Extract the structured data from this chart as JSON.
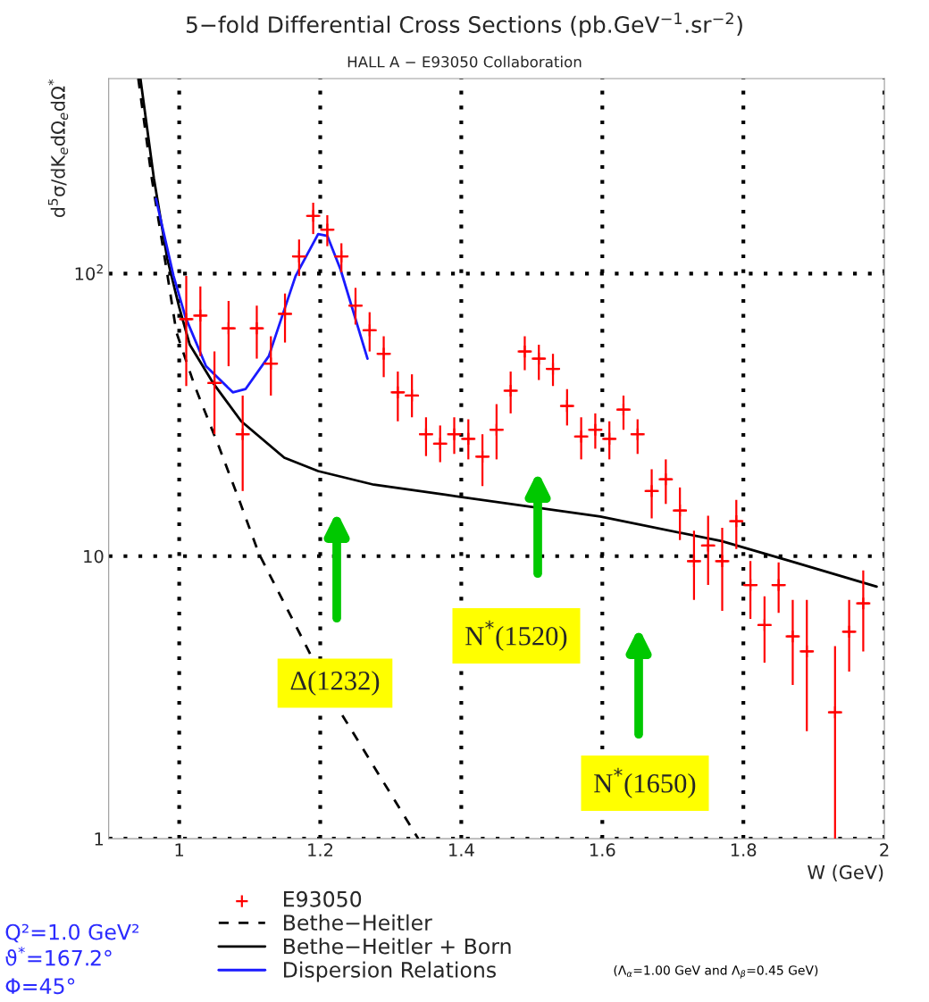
{
  "chart_data": {
    "type": "line",
    "title": "5−fold Differential Cross Sections (pb.GeV$^{−1}$.sr$^{−2}$)",
    "subtitle": "HALL A − E93050 Collaboration",
    "xlabel": "W (GeV)",
    "ylabel": "d$^{5}$σ/dK$_{e}$dΩ$_{e}$dΩ$^{*}$",
    "xlim": [
      0.9,
      2.0
    ],
    "xticks": [
      1,
      1.2,
      1.4,
      1.6,
      1.8,
      2
    ],
    "ylim": [
      1,
      490
    ],
    "yticks": [
      1,
      10,
      {
        "value": 100,
        "label": "10$^{2}$"
      }
    ],
    "log": "y",
    "grid": true,
    "legend": "bottom",
    "series": [
      {
        "name": "E93050",
        "type": "scatter",
        "marker": "cross",
        "color": "#ff0000",
        "x": [
          1.01,
          1.03,
          1.05,
          1.07,
          1.09,
          1.11,
          1.13,
          1.15,
          1.17,
          1.19,
          1.21,
          1.23,
          1.25,
          1.27,
          1.29,
          1.31,
          1.33,
          1.35,
          1.37,
          1.39,
          1.41,
          1.43,
          1.45,
          1.47,
          1.49,
          1.51,
          1.53,
          1.55,
          1.57,
          1.59,
          1.61,
          1.63,
          1.65,
          1.67,
          1.69,
          1.71,
          1.73,
          1.75,
          1.77,
          1.79,
          1.81,
          1.83,
          1.85,
          1.87,
          1.89,
          1.93,
          1.95,
          1.97
        ],
        "values": [
          69,
          71,
          41,
          64,
          27,
          64,
          48,
          72,
          115,
          160,
          143,
          115,
          77,
          63,
          52,
          38,
          37,
          27,
          25,
          27,
          26,
          22.5,
          28,
          38.5,
          53,
          50,
          46,
          34,
          26.5,
          28,
          26,
          33,
          27,
          17,
          18.7,
          14.5,
          9.6,
          10.9,
          9.6,
          13.3,
          7.9,
          5.7,
          7.9,
          5.2,
          4.6,
          2.8,
          5.4,
          6.8
        ],
        "xerrors": [
          0.01,
          0.01,
          0.01,
          0.01,
          0.01,
          0.01,
          0.01,
          0.01,
          0.01,
          0.01,
          0.01,
          0.01,
          0.01,
          0.01,
          0.01,
          0.01,
          0.01,
          0.01,
          0.01,
          0.01,
          0.01,
          0.01,
          0.01,
          0.01,
          0.01,
          0.01,
          0.01,
          0.01,
          0.01,
          0.01,
          0.01,
          0.01,
          0.01,
          0.01,
          0.01,
          0.01,
          0.01,
          0.01,
          0.01,
          0.01,
          0.01,
          0.01,
          0.01,
          0.01,
          0.01,
          0.01,
          0.01,
          0.01
        ],
        "errors": [
          [
            40,
            98
          ],
          [
            51,
            90
          ],
          [
            27,
            53
          ],
          [
            47,
            80
          ],
          [
            17,
            37
          ],
          [
            50,
            77
          ],
          [
            37,
            60
          ],
          [
            57,
            85
          ],
          [
            98,
            132
          ],
          [
            138,
            178
          ],
          [
            125,
            161
          ],
          [
            101,
            128
          ],
          [
            66,
            89
          ],
          [
            53,
            73
          ],
          [
            43,
            60
          ],
          [
            30,
            45
          ],
          [
            31,
            44
          ],
          [
            22.6,
            31
          ],
          [
            21.5,
            29
          ],
          [
            23,
            31
          ],
          [
            22,
            30.5
          ],
          [
            17.7,
            27
          ],
          [
            22,
            34.5
          ],
          [
            32,
            45
          ],
          [
            45.5,
            60
          ],
          [
            42,
            56
          ],
          [
            40,
            52
          ],
          [
            29,
            39
          ],
          [
            22,
            31
          ],
          [
            24,
            32
          ],
          [
            22,
            30
          ],
          [
            28,
            37
          ],
          [
            23,
            30.5
          ],
          [
            13.6,
            20.3
          ],
          [
            15.3,
            22
          ],
          [
            11.4,
            17.5
          ],
          [
            7,
            12.3
          ],
          [
            7.9,
            13.9
          ],
          [
            6.4,
            12.6
          ],
          [
            10.6,
            15.8
          ],
          [
            6,
            9.6
          ],
          [
            4.2,
            7.2
          ],
          [
            6.3,
            9.5
          ],
          [
            3.5,
            7
          ],
          [
            2.4,
            7
          ],
          [
            1,
            4.8
          ],
          [
            3.9,
            7
          ],
          [
            4.6,
            8.9
          ]
        ]
      },
      {
        "name": "Bethe−Heitler",
        "line_style": "dashed",
        "color": "#000000",
        "x": [
          0.942,
          0.961,
          0.983,
          0.996,
          1.022,
          1.056,
          1.085,
          1.113,
          1.225,
          1.339
        ],
        "values": [
          490,
          218,
          100,
          62,
          40,
          24.5,
          15.8,
          10.2,
          2.9,
          1.0
        ]
      },
      {
        "name": "Bethe−Heitler + Born",
        "line_style": "solid",
        "color": "#000000",
        "x": [
          0.945,
          0.964,
          0.983,
          1.0,
          1.015,
          1.048,
          1.088,
          1.149,
          1.197,
          1.276,
          1.377,
          1.597,
          1.769,
          1.867,
          1.989
        ],
        "values": [
          490,
          218,
          113,
          76,
          56,
          41,
          30,
          22.3,
          20,
          17.9,
          16.5,
          13.8,
          11.3,
          9.6,
          7.8
        ]
      },
      {
        "name": "Dispersion Relations",
        "line_style": "solid",
        "color": "#1a1aff",
        "x": [
          0.967,
          0.992,
          1.009,
          1.038,
          1.076,
          1.094,
          1.127,
          1.165,
          1.197,
          1.21,
          1.229,
          1.267
        ],
        "values": [
          184,
          98,
          70,
          47,
          38,
          39,
          51,
          98,
          138,
          136,
          103,
          50
        ]
      }
    ],
    "annotations": [
      "Q²=1.0 GeV²",
      "ϑ$^{*}$=167.2°",
      "Φ=45°",
      "(Λ$_{α}$=1.00 GeV and Λ$_{β}$=0.45 GeV)",
      "Δ(1232)",
      "N$^{*}$(1520)",
      "N$^{*}$(1650)"
    ]
  }
}
